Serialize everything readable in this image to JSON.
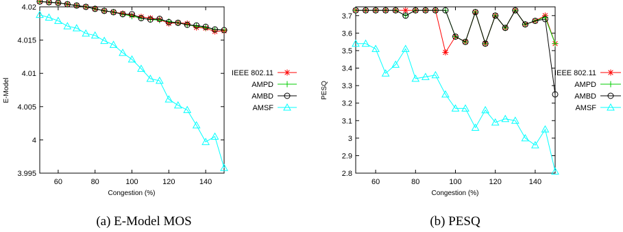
{
  "chart_data": [
    {
      "type": "line",
      "caption": "(a) E-Model MOS",
      "xlabel": "Congestion (%)",
      "ylabel": "E-Model",
      "xlim": [
        50,
        150
      ],
      "ylim": [
        3.995,
        4.02
      ],
      "xticks": [
        60,
        80,
        100,
        120,
        140
      ],
      "xtick_labels": [
        "60",
        "80",
        "100",
        "120",
        "140"
      ],
      "yticks": [
        3.995,
        4.0,
        4.005,
        4.01,
        4.015,
        4.02
      ],
      "ytick_labels": [
        "3.995",
        "4",
        "4.005",
        "4.01",
        "4.015",
        "4.02"
      ],
      "grid": false,
      "legend_position": "right",
      "x": [
        50,
        55,
        60,
        65,
        70,
        75,
        80,
        85,
        90,
        95,
        100,
        105,
        110,
        115,
        120,
        125,
        130,
        135,
        140,
        145,
        150
      ],
      "series": [
        {
          "name": "IEEE 802.11",
          "color": "#ff0000",
          "marker": "star",
          "values": [
            4.0208,
            4.0207,
            4.0206,
            4.0204,
            4.0202,
            4.02,
            4.0197,
            4.0194,
            4.0192,
            4.019,
            4.0187,
            4.0185,
            4.0183,
            4.0181,
            4.0175,
            4.0176,
            4.0175,
            4.0169,
            4.0168,
            4.0163,
            4.0164
          ]
        },
        {
          "name": "AMPD",
          "color": "#00cc00",
          "marker": "plus",
          "values": [
            4.0208,
            4.0207,
            4.0206,
            4.0204,
            4.0202,
            4.02,
            4.0197,
            4.0194,
            4.0192,
            4.0189,
            4.0186,
            4.0183,
            4.0181,
            4.018,
            4.0178,
            4.0176,
            4.0173,
            4.0171,
            4.0169,
            4.0166,
            4.0165
          ]
        },
        {
          "name": "AMBD",
          "color": "#000000",
          "marker": "circle",
          "values": [
            4.0208,
            4.0207,
            4.0206,
            4.0204,
            4.0202,
            4.02,
            4.0197,
            4.0194,
            4.0192,
            4.0189,
            4.0189,
            4.0183,
            4.0181,
            4.0182,
            4.0177,
            4.0176,
            4.0173,
            4.0172,
            4.017,
            4.0166,
            4.0165
          ]
        },
        {
          "name": "AMSF",
          "color": "#00ffff",
          "marker": "triangle",
          "values": [
            4.0188,
            4.0184,
            4.0179,
            4.0171,
            4.0168,
            4.016,
            4.0157,
            4.0149,
            4.0143,
            4.0131,
            4.0121,
            4.0107,
            4.0092,
            4.0089,
            4.0061,
            4.0052,
            4.0045,
            4.0022,
            3.9997,
            4.0005,
            3.9958
          ]
        }
      ]
    },
    {
      "type": "line",
      "caption": "(b) PESQ",
      "xlabel": "Congestion (%)",
      "ylabel": "PESQ",
      "xlim": [
        50,
        150
      ],
      "ylim": [
        2.8,
        3.75
      ],
      "xticks": [
        60,
        80,
        100,
        120,
        140
      ],
      "xtick_labels": [
        "60",
        "80",
        "100",
        "120",
        "140"
      ],
      "yticks": [
        2.8,
        2.9,
        3.0,
        3.1,
        3.2,
        3.3,
        3.4,
        3.5,
        3.6,
        3.7
      ],
      "ytick_labels": [
        "2.8",
        "2.9",
        "3",
        "3.1",
        "3.2",
        "3.3",
        "3.4",
        "3.5",
        "3.6",
        "3.7"
      ],
      "grid": false,
      "legend_position": "right",
      "x": [
        50,
        55,
        60,
        65,
        70,
        75,
        80,
        85,
        90,
        95,
        100,
        105,
        110,
        115,
        120,
        125,
        130,
        135,
        140,
        145,
        150
      ],
      "series": [
        {
          "name": "IEEE 802.11",
          "color": "#ff0000",
          "marker": "star",
          "values": [
            3.73,
            3.73,
            3.73,
            3.73,
            3.73,
            3.73,
            3.73,
            3.73,
            3.73,
            3.49,
            3.58,
            3.55,
            3.72,
            3.54,
            3.7,
            3.63,
            3.73,
            3.65,
            3.67,
            3.7,
            3.54
          ]
        },
        {
          "name": "AMPD",
          "color": "#00cc00",
          "marker": "plus",
          "values": [
            3.73,
            3.73,
            3.73,
            3.73,
            3.73,
            3.7,
            3.73,
            3.73,
            3.73,
            3.73,
            3.58,
            3.55,
            3.72,
            3.54,
            3.7,
            3.63,
            3.73,
            3.65,
            3.67,
            3.69,
            3.54
          ]
        },
        {
          "name": "AMBD",
          "color": "#000000",
          "marker": "circle",
          "values": [
            3.73,
            3.73,
            3.73,
            3.73,
            3.73,
            3.7,
            3.73,
            3.73,
            3.73,
            3.73,
            3.58,
            3.55,
            3.72,
            3.54,
            3.7,
            3.63,
            3.73,
            3.65,
            3.67,
            3.68,
            3.25
          ]
        },
        {
          "name": "AMSF",
          "color": "#00ffff",
          "marker": "triangle",
          "values": [
            3.54,
            3.54,
            3.51,
            3.37,
            3.42,
            3.51,
            3.34,
            3.35,
            3.36,
            3.25,
            3.17,
            3.17,
            3.06,
            3.16,
            3.09,
            3.11,
            3.1,
            3.0,
            2.96,
            3.05,
            2.81
          ]
        }
      ]
    }
  ]
}
